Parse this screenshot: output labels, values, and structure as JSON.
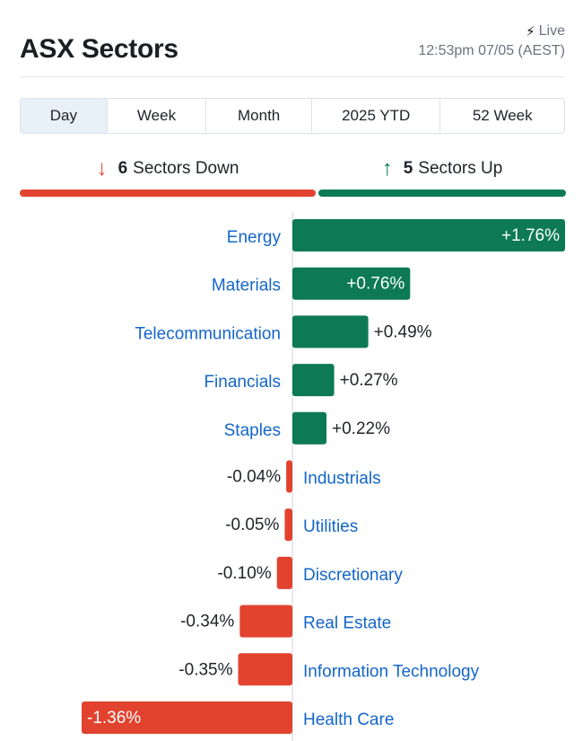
{
  "header": {
    "title": "ASX Sectors",
    "live_label": "Live",
    "timestamp": "12:53pm 07/05 (AEST)",
    "bolt_icon": "lightning-bolt-icon"
  },
  "tabs": [
    {
      "label": "Day",
      "active": true
    },
    {
      "label": "Week",
      "active": false
    },
    {
      "label": "Month",
      "active": false
    },
    {
      "label": "2025 YTD",
      "active": false
    },
    {
      "label": "52 Week",
      "active": false
    }
  ],
  "summary": {
    "down_count": "6",
    "down_label": "Sectors Down",
    "up_count": "5",
    "up_label": "Sectors Up",
    "down_icon": "arrow-down-icon",
    "up_icon": "arrow-up-icon"
  },
  "colors": {
    "positive": "#0d7a55",
    "negative": "#e2432f",
    "label": "#1466c9",
    "axis": "#dfe3e8"
  },
  "chart_data": {
    "type": "bar",
    "orientation": "horizontal",
    "categories": [
      "Energy",
      "Materials",
      "Telecommunication",
      "Financials",
      "Staples",
      "Industrials",
      "Utilities",
      "Discretionary",
      "Real Estate",
      "Information Technology",
      "Health Care"
    ],
    "values": [
      1.76,
      0.76,
      0.49,
      0.27,
      0.22,
      -0.04,
      -0.05,
      -0.1,
      -0.34,
      -0.35,
      -1.36
    ],
    "value_labels": [
      "+1.76%",
      "+0.76%",
      "+0.49%",
      "+0.27%",
      "+0.22%",
      "-0.04%",
      "-0.05%",
      "-0.10%",
      "-0.34%",
      "-0.35%",
      "-1.36%"
    ],
    "xlim": [
      -1.36,
      1.76
    ],
    "grid": false
  }
}
